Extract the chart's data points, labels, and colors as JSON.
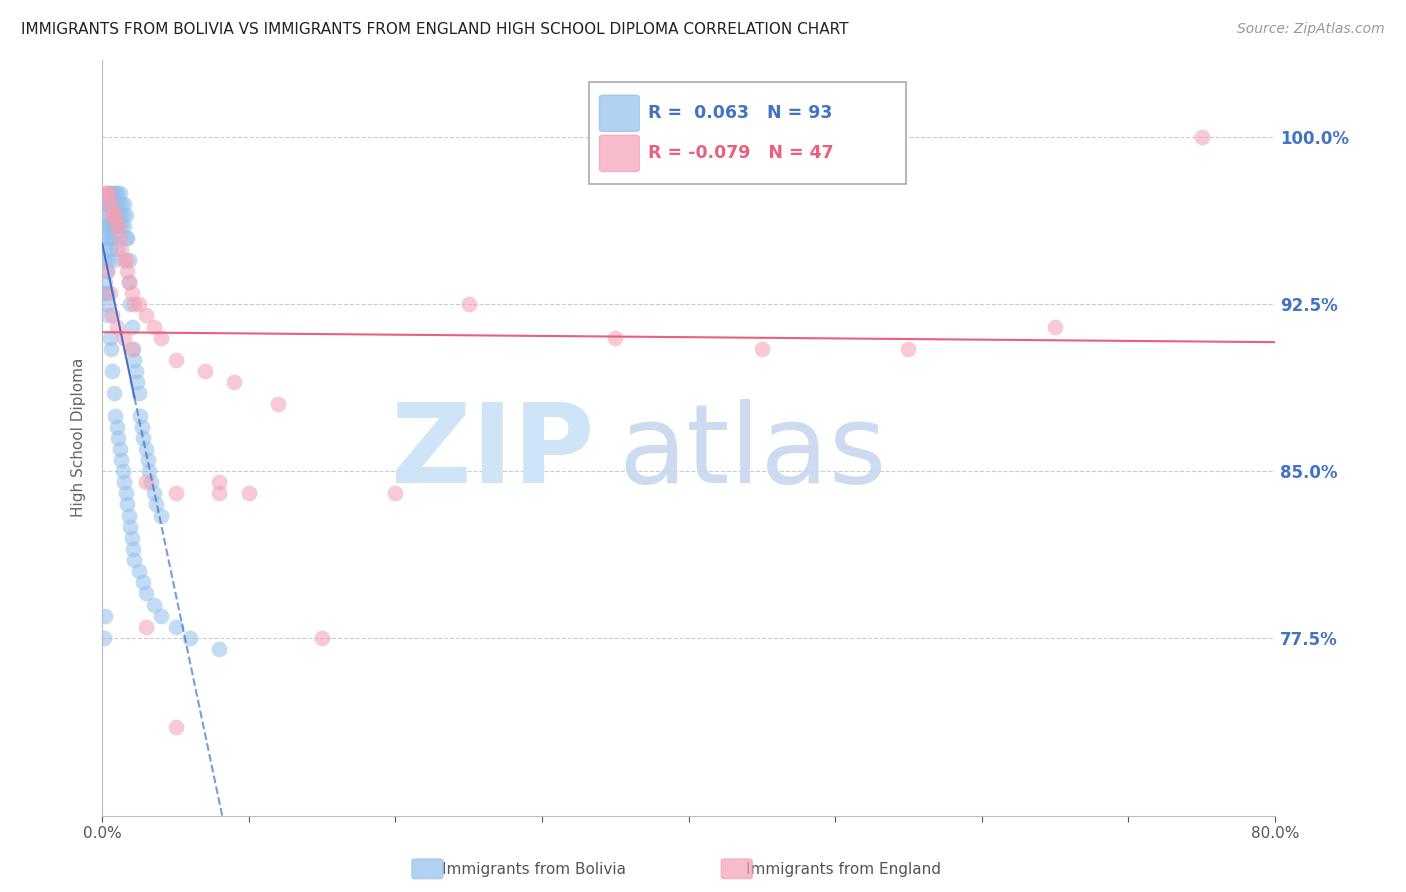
{
  "title": "IMMIGRANTS FROM BOLIVIA VS IMMIGRANTS FROM ENGLAND HIGH SCHOOL DIPLOMA CORRELATION CHART",
  "source": "Source: ZipAtlas.com",
  "ylabel": "High School Diploma",
  "ytick_labels": [
    "77.5%",
    "85.0%",
    "92.5%",
    "100.0%"
  ],
  "ytick_values": [
    0.775,
    0.85,
    0.925,
    1.0
  ],
  "xlim": [
    0.0,
    0.8
  ],
  "ylim": [
    0.695,
    1.035
  ],
  "bolivia_color": "#92C0EC",
  "england_color": "#F4A0B5",
  "bolivia_edge": "#6699CC",
  "england_edge": "#E07090",
  "bolivia_label": "Immigrants from Bolivia",
  "england_label": "Immigrants from England",
  "bolivia_R": 0.063,
  "bolivia_N": 93,
  "england_R": -0.079,
  "england_N": 47,
  "title_fontsize": 11,
  "source_fontsize": 10,
  "axis_tick_fontsize": 11,
  "ylabel_fontsize": 11,
  "background_color": "#ffffff",
  "grid_color": "#cccccc",
  "bolivia_line_color": "#4472c4",
  "england_line_color": "#E8607A",
  "watermark_zip_color": "#D0E4F7",
  "watermark_atlas_color": "#C8D8F0"
}
